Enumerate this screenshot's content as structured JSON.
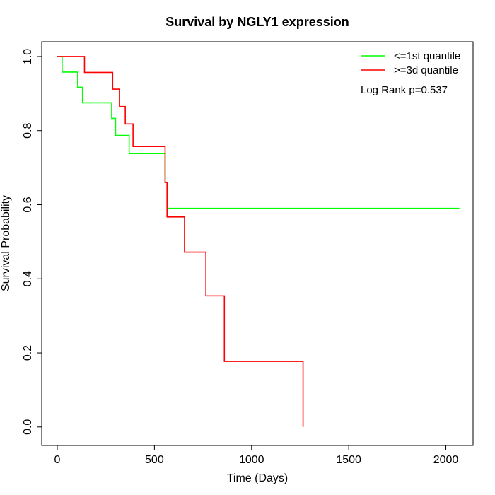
{
  "chart_data": {
    "type": "line",
    "step": true,
    "title": "Survival by NGLY1 expression",
    "xlabel": "Time (Days)",
    "ylabel": "Survival Probability",
    "xlim": [
      -80,
      2140
    ],
    "ylim": [
      -0.05,
      1.04
    ],
    "xticks": [
      0,
      500,
      1000,
      1500,
      2000
    ],
    "xtick_labels": [
      "0",
      "500",
      "1000",
      "1500",
      "2000"
    ],
    "yticks": [
      0.0,
      0.2,
      0.4,
      0.6,
      0.8,
      1.0
    ],
    "ytick_labels": [
      "0.0",
      "0.2",
      "0.4",
      "0.6",
      "0.8",
      "1.0"
    ],
    "grid": false,
    "legend_position": "top-right",
    "annotation": "Log Rank p=0.537",
    "series": [
      {
        "name": "<=1st quantile",
        "color": "#00ff00",
        "x": [
          0,
          25,
          105,
          130,
          280,
          300,
          370,
          555,
          565,
          2070
        ],
        "y": [
          1.0,
          0.958,
          0.917,
          0.875,
          0.833,
          0.787,
          0.738,
          0.66,
          0.59,
          0.59
        ]
      },
      {
        "name": ">=3d quantile",
        "color": "#ff0000",
        "x": [
          0,
          140,
          285,
          320,
          350,
          390,
          555,
          565,
          655,
          765,
          860,
          1265
        ],
        "y": [
          1.0,
          0.957,
          0.912,
          0.865,
          0.818,
          0.757,
          0.66,
          0.567,
          0.472,
          0.354,
          0.177,
          0.0
        ]
      }
    ]
  }
}
